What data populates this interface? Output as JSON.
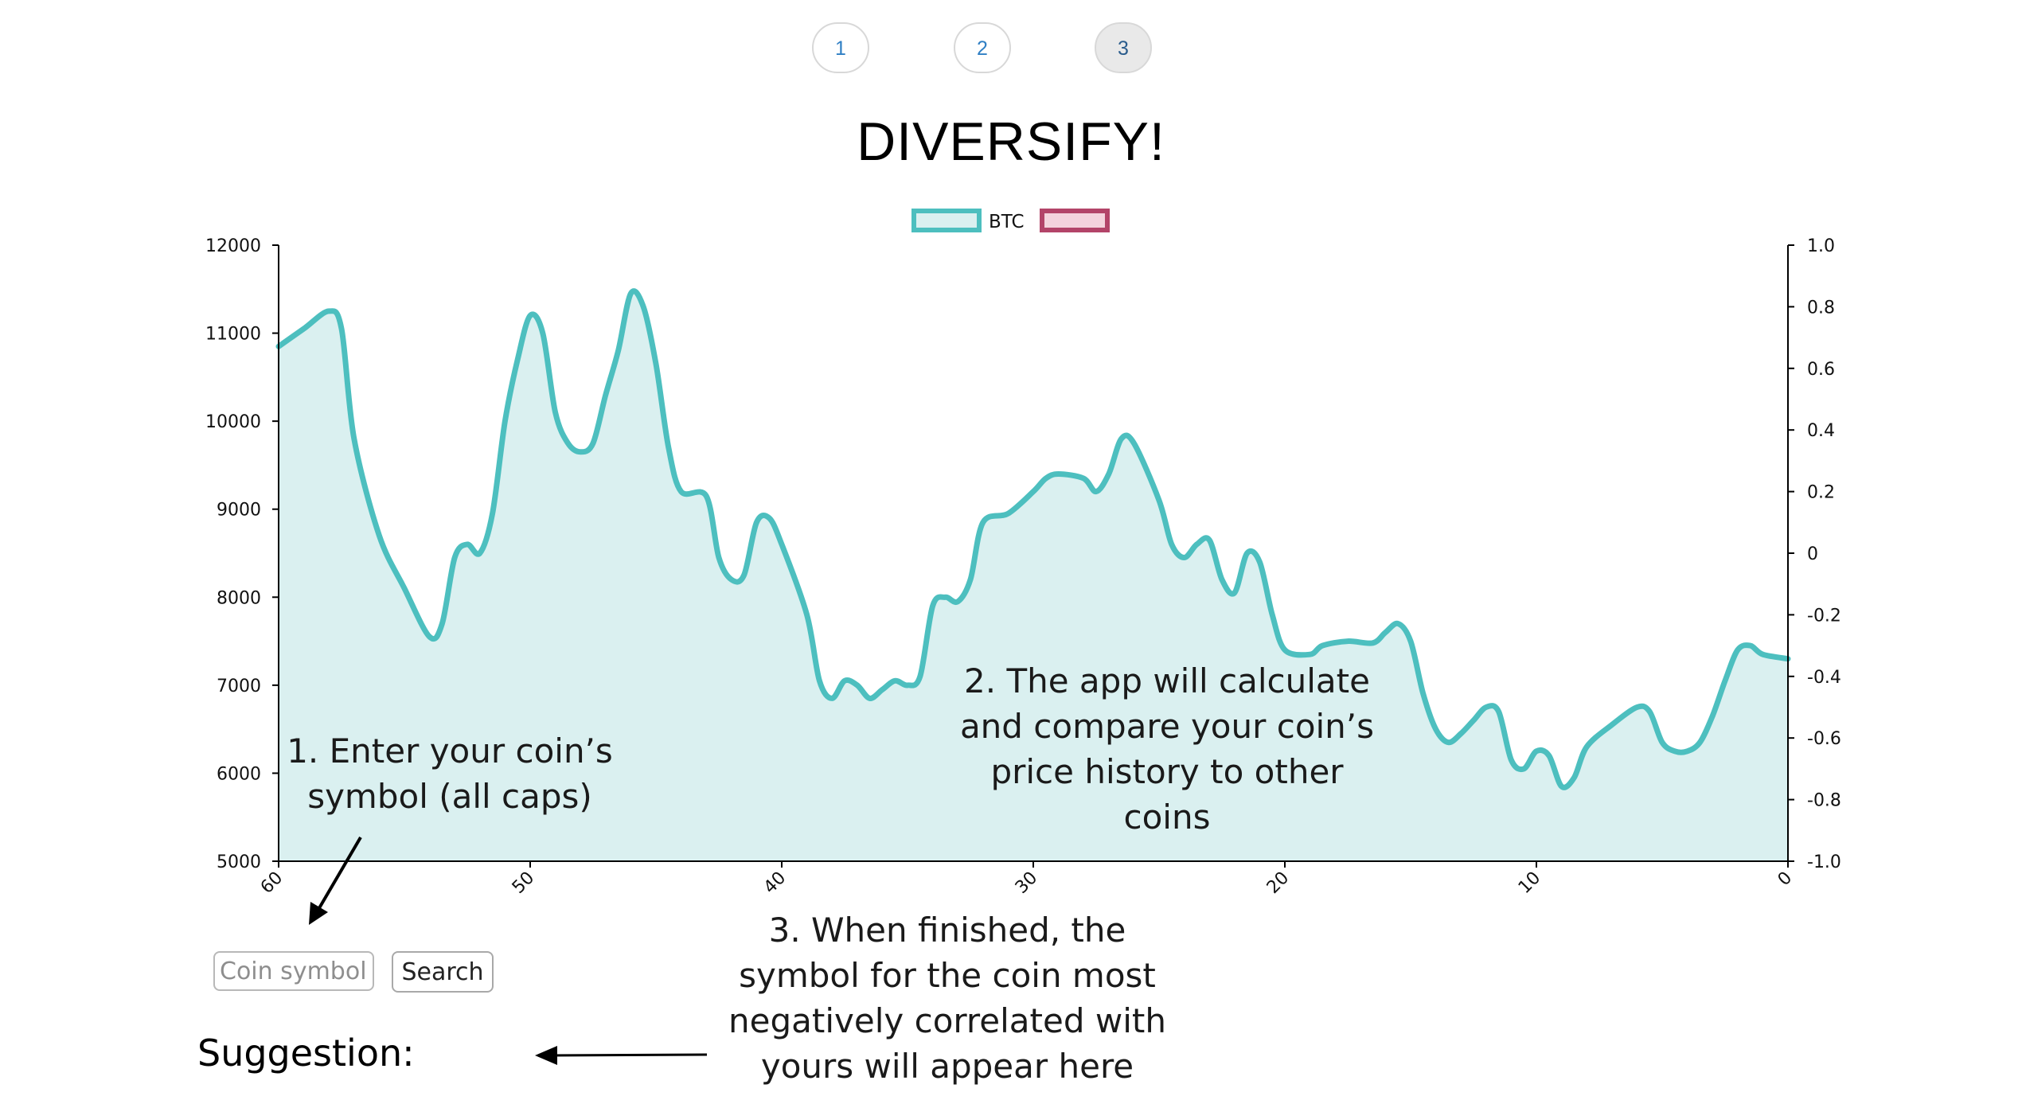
{
  "pagination": {
    "pages": [
      "1",
      "2",
      "3"
    ],
    "active": "3"
  },
  "title": "DIVERSIFY!",
  "colors": {
    "series_line": "#4dbfbf",
    "series_fill": "#daf0f0",
    "second_series_border": "#b34469",
    "second_series_fill": "#f4d3dd",
    "page_link": "#2f7fc4"
  },
  "chart_data": {
    "type": "line",
    "legend": {
      "position": "top-center",
      "entries": [
        {
          "name": "BTC",
          "color": "#4dbfbf",
          "fill": "#daf0f0"
        },
        {
          "name": "",
          "color": "#b34469",
          "fill": "#f4d3dd"
        }
      ]
    },
    "x": {
      "ticks": [
        "60",
        "50",
        "40",
        "30",
        "20",
        "10",
        "0"
      ],
      "range": [
        60,
        0
      ],
      "reversed": true
    },
    "y_left": {
      "ticks": [
        "5000",
        "6000",
        "7000",
        "8000",
        "9000",
        "10000",
        "11000",
        "12000"
      ],
      "range": [
        5000,
        12000
      ]
    },
    "y_right": {
      "ticks": [
        "-1.0",
        "-0.8",
        "-0.6",
        "-0.4",
        "-0.2",
        "0",
        "0.2",
        "0.4",
        "0.6",
        "0.8",
        "1.0"
      ],
      "range": [
        -1.0,
        1.0
      ]
    },
    "grid": false,
    "series": [
      {
        "name": "BTC",
        "filled": true,
        "points": [
          [
            60,
            10850
          ],
          [
            59,
            11050
          ],
          [
            58,
            11250
          ],
          [
            57.5,
            11050
          ],
          [
            57,
            9800
          ],
          [
            56,
            8700
          ],
          [
            55,
            8100
          ],
          [
            54,
            7550
          ],
          [
            53.5,
            7700
          ],
          [
            53,
            8450
          ],
          [
            52.5,
            8600
          ],
          [
            52,
            8500
          ],
          [
            51.5,
            8950
          ],
          [
            51,
            10000
          ],
          [
            50.5,
            10700
          ],
          [
            50,
            11200
          ],
          [
            49.5,
            11000
          ],
          [
            49,
            10100
          ],
          [
            48.5,
            9750
          ],
          [
            48,
            9650
          ],
          [
            47.5,
            9750
          ],
          [
            47,
            10300
          ],
          [
            46.5,
            10800
          ],
          [
            46,
            11450
          ],
          [
            45.5,
            11300
          ],
          [
            45,
            10650
          ],
          [
            44.5,
            9700
          ],
          [
            44,
            9200
          ],
          [
            43,
            9150
          ],
          [
            42.5,
            8450
          ],
          [
            42,
            8200
          ],
          [
            41.5,
            8250
          ],
          [
            41,
            8850
          ],
          [
            40.5,
            8900
          ],
          [
            40,
            8600
          ],
          [
            39,
            7800
          ],
          [
            38.5,
            7050
          ],
          [
            38,
            6850
          ],
          [
            37.5,
            7050
          ],
          [
            37,
            7000
          ],
          [
            36.5,
            6850
          ],
          [
            36,
            6950
          ],
          [
            35.5,
            7050
          ],
          [
            35,
            7000
          ],
          [
            34.5,
            7100
          ],
          [
            34,
            7900
          ],
          [
            33.5,
            8000
          ],
          [
            33,
            7950
          ],
          [
            32.5,
            8200
          ],
          [
            32,
            8850
          ],
          [
            31,
            8950
          ],
          [
            30,
            9200
          ],
          [
            29.5,
            9350
          ],
          [
            29,
            9400
          ],
          [
            28,
            9350
          ],
          [
            27.5,
            9200
          ],
          [
            27,
            9400
          ],
          [
            26.5,
            9800
          ],
          [
            26,
            9750
          ],
          [
            25,
            9100
          ],
          [
            24.5,
            8600
          ],
          [
            24,
            8450
          ],
          [
            23.5,
            8600
          ],
          [
            23,
            8650
          ],
          [
            22.5,
            8200
          ],
          [
            22,
            8050
          ],
          [
            21.5,
            8500
          ],
          [
            21,
            8400
          ],
          [
            20.5,
            7800
          ],
          [
            20,
            7400
          ],
          [
            19,
            7350
          ],
          [
            18.5,
            7450
          ],
          [
            17.5,
            7500
          ],
          [
            16.5,
            7480
          ],
          [
            16,
            7600
          ],
          [
            15.5,
            7700
          ],
          [
            15,
            7500
          ],
          [
            14.5,
            6900
          ],
          [
            14,
            6500
          ],
          [
            13.5,
            6350
          ],
          [
            13,
            6450
          ],
          [
            12.5,
            6600
          ],
          [
            12,
            6750
          ],
          [
            11.5,
            6700
          ],
          [
            11,
            6150
          ],
          [
            10.5,
            6050
          ],
          [
            10,
            6250
          ],
          [
            9.5,
            6200
          ],
          [
            9,
            5850
          ],
          [
            8.5,
            5950
          ],
          [
            8,
            6300
          ],
          [
            7,
            6550
          ],
          [
            6,
            6750
          ],
          [
            5.5,
            6700
          ],
          [
            5,
            6350
          ],
          [
            4.5,
            6250
          ],
          [
            4,
            6250
          ],
          [
            3.5,
            6350
          ],
          [
            3,
            6650
          ],
          [
            2.5,
            7050
          ],
          [
            2,
            7400
          ],
          [
            1.5,
            7450
          ],
          [
            1,
            7350
          ],
          [
            0,
            7300
          ]
        ]
      }
    ]
  },
  "annotations": {
    "step1": [
      "1. Enter your coin’s",
      "symbol (all caps)"
    ],
    "step2": [
      "2. The app will calculate",
      "and compare your coin’s",
      "price history to other",
      "coins"
    ],
    "step3": [
      "3. When finished, the",
      "symbol for the coin most",
      "negatively correlated with",
      "yours will appear here"
    ]
  },
  "search": {
    "placeholder": "Coin symbol",
    "value": "",
    "button_label": "Search"
  },
  "suggestion": {
    "label": "Suggestion:",
    "value": ""
  }
}
